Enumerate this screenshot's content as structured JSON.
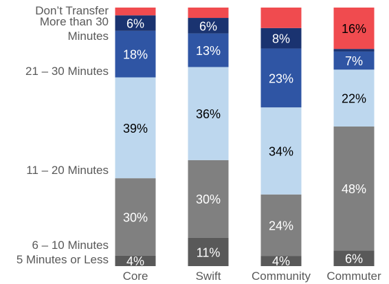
{
  "chart_data": {
    "type": "bar",
    "stacked": true,
    "normalized": true,
    "categories": [
      "Core",
      "Swift",
      "Community",
      "Commuter"
    ],
    "series": [
      {
        "name": "5 Minutes or Less",
        "color": "#595959",
        "text_color": "#ffffff",
        "values": [
          4,
          11,
          4,
          6
        ],
        "labels": [
          "4%",
          "11%",
          "4%",
          "6%"
        ]
      },
      {
        "name": "6 – 10 Minutes",
        "color": "#808080",
        "text_color": "#ffffff",
        "values": [
          30,
          30,
          24,
          48
        ],
        "labels": [
          "30%",
          "30%",
          "24%",
          "48%"
        ]
      },
      {
        "name": "11 – 20 Minutes",
        "color": "#bdd7ee",
        "text_color": "#000000",
        "values": [
          39,
          36,
          34,
          22
        ],
        "labels": [
          "39%",
          "36%",
          "34%",
          "22%"
        ]
      },
      {
        "name": "21 – 30 Minutes",
        "color": "#2f55a4",
        "text_color": "#ffffff",
        "values": [
          18,
          13,
          23,
          7
        ],
        "labels": [
          "18%",
          "13%",
          "23%",
          "7%"
        ]
      },
      {
        "name": "More than 30 Minutes",
        "color": "#1a3370",
        "text_color": "#ffffff",
        "values": [
          6,
          6,
          8,
          1
        ],
        "labels": [
          "6%",
          "6%",
          "8%",
          ""
        ]
      },
      {
        "name": "Don’t Transfer",
        "color": "#f04b4f",
        "text_color": "#000000",
        "values": [
          3,
          4,
          8,
          16
        ],
        "labels": [
          "",
          "",
          "",
          "16%"
        ]
      }
    ],
    "legend": {
      "position": "left",
      "labels": [
        {
          "lines": [
            "Don’t Transfer"
          ],
          "series": 5
        },
        {
          "lines": [
            "More than 30",
            "Minutes"
          ],
          "series": 4
        },
        {
          "lines": [
            "21 – 30 Minutes"
          ],
          "series": 3
        },
        {
          "lines": [
            "11 – 20 Minutes"
          ],
          "series": 2
        },
        {
          "lines": [
            "6 – 10 Minutes"
          ],
          "series": 1
        },
        {
          "lines": [
            "5 Minutes or Less"
          ],
          "series": 0
        }
      ]
    },
    "title": "",
    "xlabel": "",
    "ylabel": "",
    "ylim": [
      0,
      100
    ],
    "grid": false
  }
}
